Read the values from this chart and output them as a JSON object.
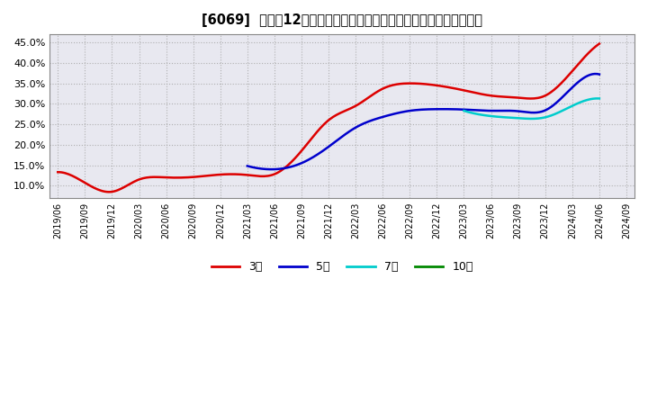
{
  "title": "[6069]  売上高12か月移動合計の対前年同期増減率の標準偏差の推移",
  "background_color": "#ffffff",
  "plot_bg_color": "#e8e8f0",
  "grid_color": "#aaaaaa",
  "ylim": [
    0.07,
    0.47
  ],
  "yticks": [
    0.1,
    0.15,
    0.2,
    0.25,
    0.3,
    0.35,
    0.4,
    0.45
  ],
  "series": {
    "3年": {
      "color": "#dd0000",
      "x": [
        "2019/06",
        "2019/09",
        "2019/12",
        "2020/03",
        "2020/06",
        "2020/09",
        "2020/12",
        "2021/03",
        "2021/06",
        "2021/09",
        "2021/12",
        "2022/03",
        "2022/06",
        "2022/09",
        "2022/12",
        "2023/03",
        "2023/06",
        "2023/09",
        "2023/12",
        "2024/03",
        "2024/06"
      ],
      "y": [
        0.133,
        0.107,
        0.085,
        0.115,
        0.12,
        0.121,
        0.127,
        0.126,
        0.128,
        0.185,
        0.26,
        0.295,
        0.337,
        0.35,
        0.345,
        0.333,
        0.32,
        0.315,
        0.32,
        0.38,
        0.447
      ]
    },
    "5年": {
      "color": "#0000cc",
      "x": [
        "2021/03",
        "2021/06",
        "2021/09",
        "2021/12",
        "2022/03",
        "2022/06",
        "2022/09",
        "2022/12",
        "2023/03",
        "2023/06",
        "2023/09",
        "2023/12",
        "2024/03",
        "2024/06"
      ],
      "y": [
        0.148,
        0.14,
        0.155,
        0.195,
        0.242,
        0.268,
        0.283,
        0.287,
        0.286,
        0.283,
        0.282,
        0.284,
        0.34,
        0.372
      ]
    },
    "7年": {
      "color": "#00cccc",
      "x": [
        "2023/03",
        "2023/06",
        "2023/09",
        "2023/12",
        "2024/03",
        "2024/06"
      ],
      "y": [
        0.283,
        0.27,
        0.265,
        0.267,
        0.295,
        0.313
      ]
    },
    "10年": {
      "color": "#008800",
      "x": [],
      "y": []
    }
  },
  "legend_labels": [
    "3年",
    "5年",
    "7年",
    "10年"
  ],
  "legend_colors": [
    "#dd0000",
    "#0000cc",
    "#00cccc",
    "#008800"
  ],
  "xtick_labels": [
    "2019/06",
    "2019/09",
    "2019/12",
    "2020/03",
    "2020/06",
    "2020/09",
    "2020/12",
    "2021/03",
    "2021/06",
    "2021/09",
    "2021/12",
    "2022/03",
    "2022/06",
    "2022/09",
    "2022/12",
    "2023/03",
    "2023/06",
    "2023/09",
    "2023/12",
    "2024/03",
    "2024/06",
    "2024/09"
  ]
}
